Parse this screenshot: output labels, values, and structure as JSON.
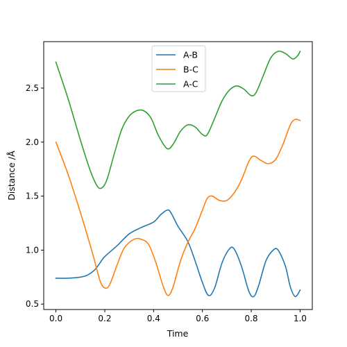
{
  "chart_data": {
    "type": "line",
    "title": "",
    "xlabel": "Time",
    "ylabel": "Distance /Å",
    "xlim": [
      -0.05,
      1.05
    ],
    "ylim": [
      0.45,
      2.93
    ],
    "xticks": [
      0.0,
      0.2,
      0.4,
      0.6,
      0.8,
      1.0
    ],
    "xtick_labels": [
      "0.0",
      "0.2",
      "0.4",
      "0.6",
      "0.8",
      "1.0"
    ],
    "yticks": [
      0.5,
      1.0,
      1.5,
      2.0,
      2.5
    ],
    "ytick_labels": [
      "0.5",
      "1.0",
      "1.5",
      "2.0",
      "2.5"
    ],
    "grid": false,
    "legend_position": "top-center",
    "series": [
      {
        "name": "A-B",
        "color": "#1f77b4",
        "points": [
          [
            0.0,
            0.74
          ],
          [
            0.05,
            0.74
          ],
          [
            0.1,
            0.75
          ],
          [
            0.13,
            0.77
          ],
          [
            0.16,
            0.82
          ],
          [
            0.18,
            0.88
          ],
          [
            0.2,
            0.94
          ],
          [
            0.25,
            1.04
          ],
          [
            0.3,
            1.15
          ],
          [
            0.35,
            1.21
          ],
          [
            0.4,
            1.26
          ],
          [
            0.43,
            1.33
          ],
          [
            0.455,
            1.37
          ],
          [
            0.47,
            1.35
          ],
          [
            0.5,
            1.22
          ],
          [
            0.54,
            1.08
          ],
          [
            0.57,
            0.9
          ],
          [
            0.6,
            0.7
          ],
          [
            0.625,
            0.58
          ],
          [
            0.65,
            0.65
          ],
          [
            0.68,
            0.88
          ],
          [
            0.71,
            1.01
          ],
          [
            0.73,
            1.01
          ],
          [
            0.76,
            0.85
          ],
          [
            0.79,
            0.62
          ],
          [
            0.81,
            0.57
          ],
          [
            0.83,
            0.67
          ],
          [
            0.86,
            0.9
          ],
          [
            0.89,
            1.0
          ],
          [
            0.91,
            1.0
          ],
          [
            0.94,
            0.85
          ],
          [
            0.96,
            0.66
          ],
          [
            0.98,
            0.57
          ],
          [
            1.0,
            0.63
          ]
        ]
      },
      {
        "name": "B-C",
        "color": "#ff7f0e",
        "points": [
          [
            0.0,
            2.0
          ],
          [
            0.05,
            1.7
          ],
          [
            0.1,
            1.35
          ],
          [
            0.15,
            0.97
          ],
          [
            0.18,
            0.72
          ],
          [
            0.2,
            0.65
          ],
          [
            0.22,
            0.68
          ],
          [
            0.25,
            0.86
          ],
          [
            0.28,
            1.02
          ],
          [
            0.32,
            1.1
          ],
          [
            0.35,
            1.1
          ],
          [
            0.38,
            1.05
          ],
          [
            0.41,
            0.88
          ],
          [
            0.44,
            0.66
          ],
          [
            0.46,
            0.58
          ],
          [
            0.48,
            0.66
          ],
          [
            0.51,
            0.9
          ],
          [
            0.54,
            1.07
          ],
          [
            0.57,
            1.2
          ],
          [
            0.6,
            1.37
          ],
          [
            0.62,
            1.48
          ],
          [
            0.64,
            1.5
          ],
          [
            0.67,
            1.46
          ],
          [
            0.7,
            1.46
          ],
          [
            0.73,
            1.53
          ],
          [
            0.76,
            1.65
          ],
          [
            0.79,
            1.82
          ],
          [
            0.81,
            1.87
          ],
          [
            0.84,
            1.83
          ],
          [
            0.87,
            1.8
          ],
          [
            0.9,
            1.84
          ],
          [
            0.93,
            1.98
          ],
          [
            0.96,
            2.16
          ],
          [
            0.98,
            2.21
          ],
          [
            1.0,
            2.2
          ]
        ]
      },
      {
        "name": "A-C",
        "color": "#2ca02c",
        "points": [
          [
            0.0,
            2.74
          ],
          [
            0.05,
            2.4
          ],
          [
            0.1,
            2.02
          ],
          [
            0.14,
            1.74
          ],
          [
            0.17,
            1.59
          ],
          [
            0.19,
            1.58
          ],
          [
            0.21,
            1.66
          ],
          [
            0.24,
            1.9
          ],
          [
            0.27,
            2.12
          ],
          [
            0.3,
            2.24
          ],
          [
            0.33,
            2.29
          ],
          [
            0.36,
            2.29
          ],
          [
            0.39,
            2.22
          ],
          [
            0.42,
            2.06
          ],
          [
            0.455,
            1.94
          ],
          [
            0.48,
            1.98
          ],
          [
            0.51,
            2.1
          ],
          [
            0.54,
            2.16
          ],
          [
            0.57,
            2.14
          ],
          [
            0.6,
            2.07
          ],
          [
            0.62,
            2.07
          ],
          [
            0.65,
            2.22
          ],
          [
            0.68,
            2.38
          ],
          [
            0.71,
            2.48
          ],
          [
            0.74,
            2.52
          ],
          [
            0.77,
            2.49
          ],
          [
            0.8,
            2.43
          ],
          [
            0.82,
            2.46
          ],
          [
            0.85,
            2.62
          ],
          [
            0.88,
            2.78
          ],
          [
            0.91,
            2.84
          ],
          [
            0.94,
            2.82
          ],
          [
            0.97,
            2.77
          ],
          [
            0.99,
            2.8
          ],
          [
            1.0,
            2.84
          ]
        ]
      }
    ]
  }
}
